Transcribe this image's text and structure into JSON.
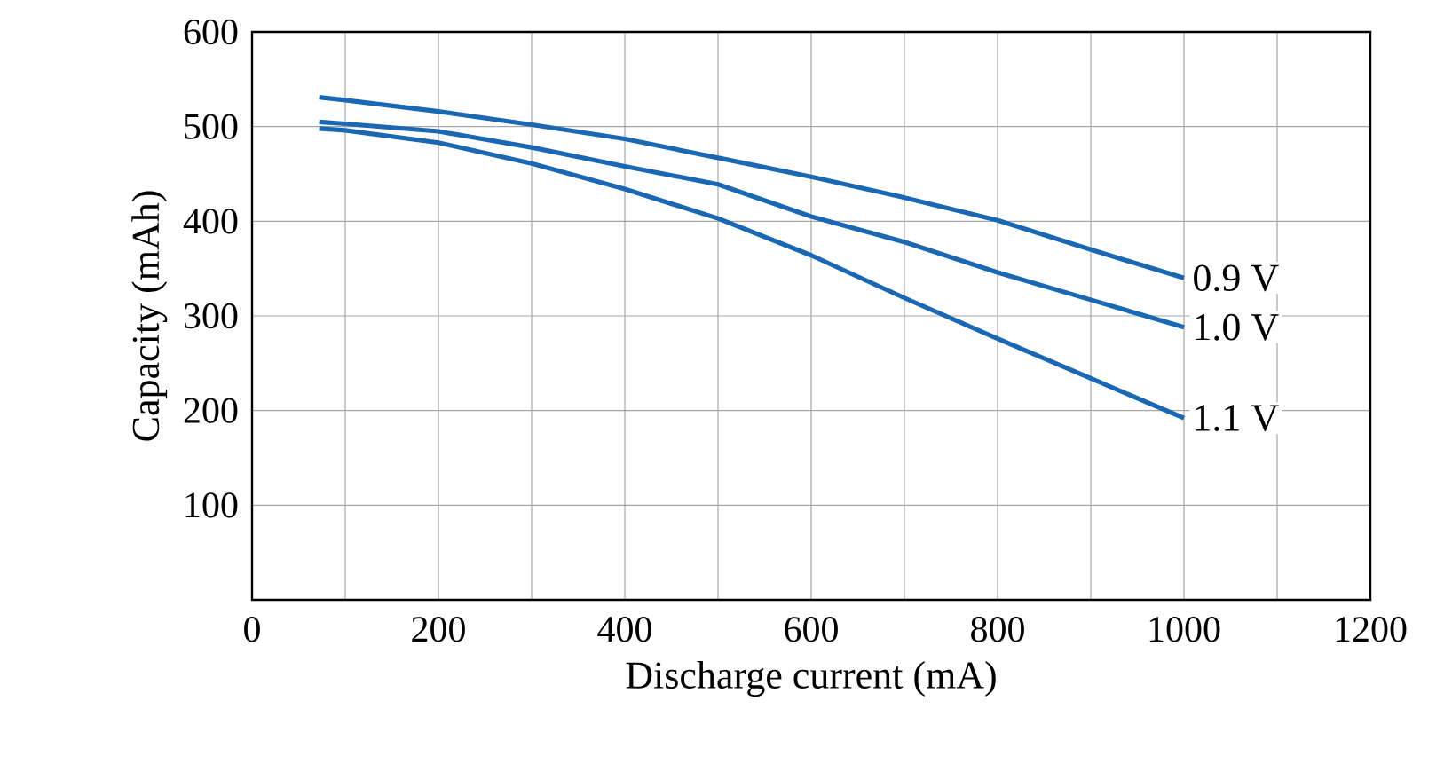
{
  "chart_data": {
    "type": "line",
    "xlabel": "Discharge current (mA)",
    "ylabel": "Capacity (mAh)",
    "xlim": [
      0,
      1200
    ],
    "ylim": [
      0,
      600
    ],
    "xticks": [
      0,
      {
        "value": 100,
        "label": null
      },
      200,
      {
        "value": 300,
        "label": null
      },
      400,
      {
        "value": 500,
        "label": null
      },
      600,
      {
        "value": 700,
        "label": null
      },
      800,
      {
        "value": 900,
        "label": null
      },
      1000,
      {
        "value": 1100,
        "label": null
      },
      1200
    ],
    "yticks": [
      {
        "value": 0,
        "label": null
      },
      100,
      200,
      300,
      400,
      500,
      600
    ],
    "grid": true,
    "marker": "none",
    "line_style": "solid",
    "x": [
      72,
      100,
      200,
      300,
      400,
      500,
      600,
      700,
      800,
      900,
      1000
    ],
    "series": [
      {
        "name": "0.9 V",
        "color": "#1a67b4",
        "values": [
          531,
          528,
          516,
          502,
          487,
          467,
          447,
          425,
          401,
          370,
          340
        ]
      },
      {
        "name": "1.0 V",
        "color": "#1a67b4",
        "values": [
          505,
          503,
          495,
          478,
          458,
          439,
          405,
          378,
          346,
          317,
          288
        ]
      },
      {
        "name": "1.1 V",
        "color": "#1a67b4",
        "values": [
          498,
          496,
          483,
          461,
          434,
          403,
          364,
          319,
          276,
          234,
          192
        ]
      }
    ]
  }
}
